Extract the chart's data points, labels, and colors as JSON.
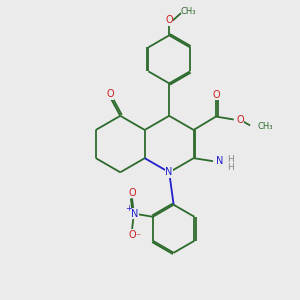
{
  "bg_color": "#ebebeb",
  "bond_color": "#2d6b2d",
  "N_color": "#2020cc",
  "O_color": "#cc2020",
  "NH_color": "#888888",
  "lw": 1.3,
  "dbo": 0.06,
  "xlim": [
    0,
    10
  ],
  "ylim": [
    0,
    10
  ]
}
